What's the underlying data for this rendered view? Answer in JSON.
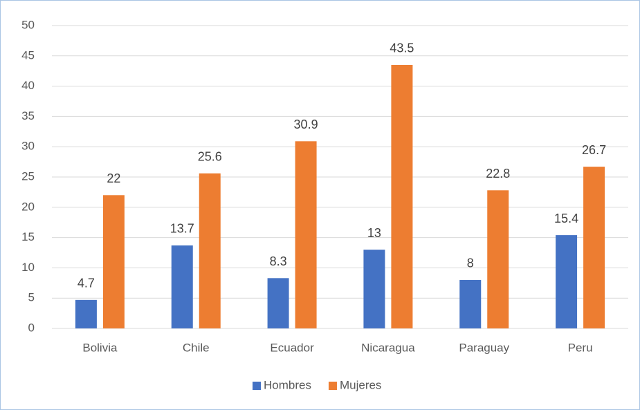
{
  "chart_data": {
    "type": "bar",
    "categories": [
      "Bolivia",
      "Chile",
      "Ecuador",
      "Nicaragua",
      "Paraguay",
      "Peru"
    ],
    "series": [
      {
        "name": "Hombres",
        "color": "#4472c4",
        "values": [
          4.7,
          13.7,
          8.3,
          13,
          8,
          15.4
        ]
      },
      {
        "name": "Mujeres",
        "color": "#ed7d31",
        "values": [
          22,
          25.6,
          30.9,
          43.5,
          22.8,
          26.7
        ]
      }
    ],
    "ylim": [
      0,
      50
    ],
    "yticks": [
      0,
      5,
      10,
      15,
      20,
      25,
      30,
      35,
      40,
      45,
      50
    ],
    "grid": true,
    "legend": "bottom"
  }
}
